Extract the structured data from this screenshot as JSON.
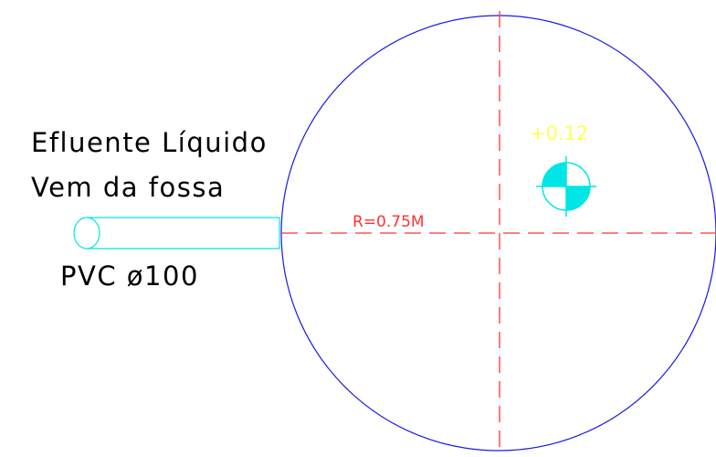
{
  "labels": {
    "inflow_line1": "Efluente Líquido",
    "inflow_line2": "Vem da fossa",
    "pipe_spec": "PVC ø100",
    "radius": "R=0.75M",
    "elevation": "+0.12"
  },
  "colors": {
    "background": "#ffffff",
    "tank_outline": "#1a1ae6",
    "centerline": "#ff3333",
    "pipe": "#00e5e5",
    "elevation_text": "#ffff55",
    "label_text": "#000000"
  },
  "icons": {
    "pipe_end": "circle-end-icon",
    "elevation_marker": "quartered-circle-icon"
  }
}
